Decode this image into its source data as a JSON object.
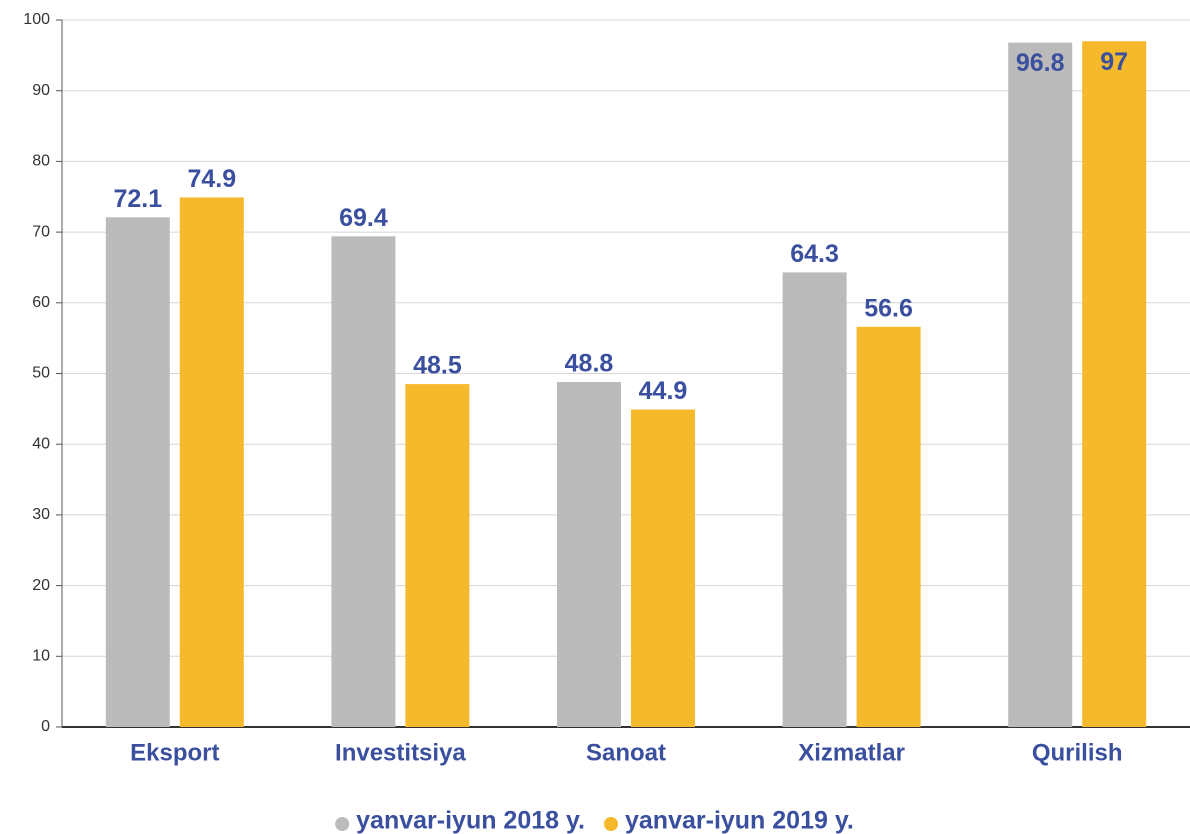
{
  "chart_data": {
    "type": "bar",
    "categories": [
      "Eksport",
      "Investitsiya",
      "Sanoat",
      "Xizmatlar",
      "Qurilish"
    ],
    "series": [
      {
        "name": "yanvar-iyun 2018 y.",
        "color": "#bbbbbb",
        "values": [
          72.1,
          69.4,
          48.8,
          64.3,
          96.8
        ]
      },
      {
        "name": "yanvar-iyun 2019 y.",
        "color": "#f5b92b",
        "values": [
          74.9,
          48.5,
          44.9,
          56.6,
          97
        ]
      }
    ],
    "ylim": [
      0,
      100
    ],
    "yticks": [
      0,
      10,
      20,
      30,
      40,
      50,
      60,
      70,
      80,
      90,
      100
    ],
    "grid": true,
    "legend": "bottom"
  }
}
